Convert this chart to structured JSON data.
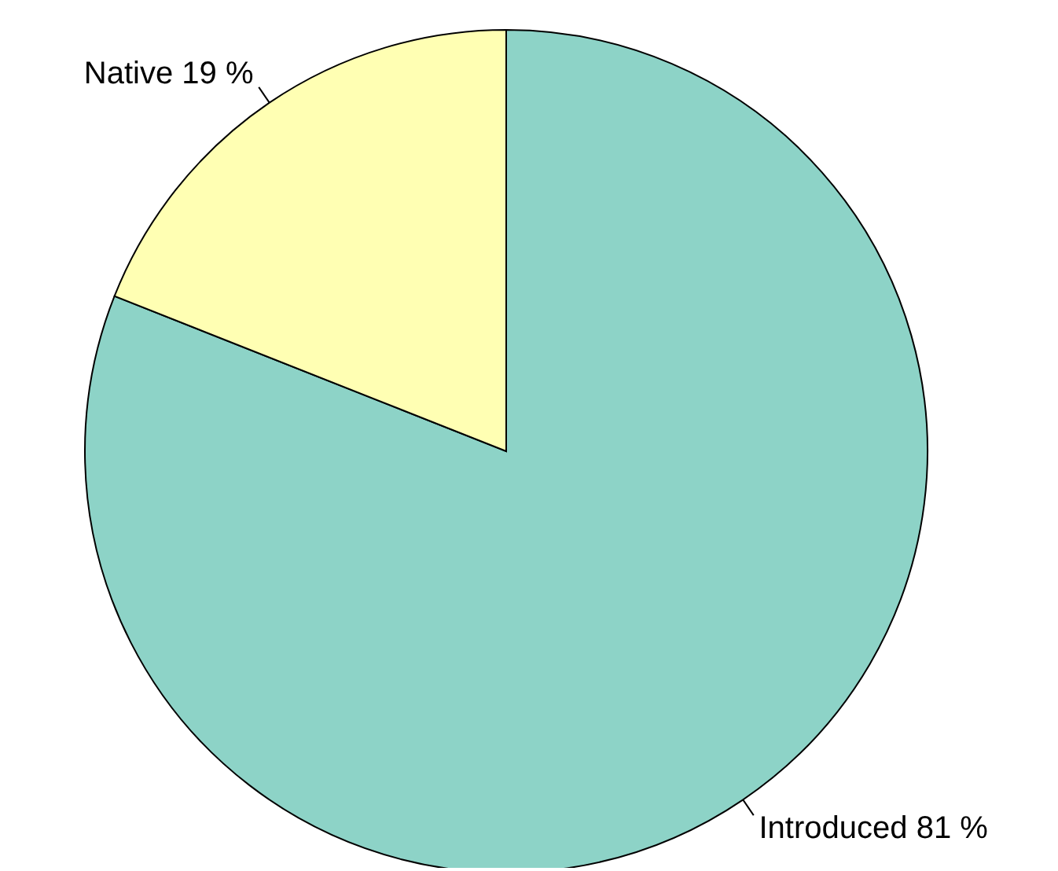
{
  "chart_data": {
    "type": "pie",
    "categories": [
      "Introduced",
      "Native"
    ],
    "values": [
      81,
      19
    ],
    "colors": [
      "#8dd3c7",
      "#ffffb3"
    ],
    "value_labels": [
      "81 %",
      "19 %"
    ]
  }
}
